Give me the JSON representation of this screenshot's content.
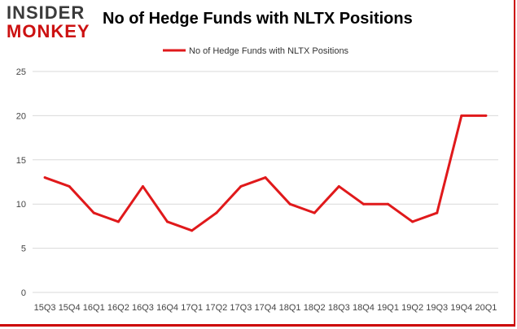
{
  "brand": {
    "line1": "INSIDER",
    "line2": "MONKEY"
  },
  "colors": {
    "series": "#e0191b",
    "grid": "#d9d9d9",
    "brand_red": "#cc1111",
    "brand_dark": "#3a3a3a"
  },
  "chart_data": {
    "type": "line",
    "title": "No of Hedge Funds with NLTX Positions",
    "xlabel": "",
    "ylabel": "",
    "categories": [
      "15Q3",
      "15Q4",
      "16Q1",
      "16Q2",
      "16Q3",
      "16Q4",
      "17Q1",
      "17Q2",
      "17Q3",
      "17Q4",
      "18Q1",
      "18Q2",
      "18Q3",
      "18Q4",
      "19Q1",
      "19Q2",
      "19Q3",
      "19Q4",
      "20Q1"
    ],
    "series": [
      {
        "name": "No of Hedge Funds with NLTX Positions",
        "values": [
          13,
          12,
          9,
          8,
          12,
          8,
          7,
          9,
          12,
          13,
          10,
          9,
          12,
          10,
          10,
          8,
          9,
          20,
          20
        ]
      }
    ],
    "ylim": [
      0,
      25
    ],
    "yticks": [
      0,
      5,
      10,
      15,
      20,
      25
    ],
    "grid": true,
    "legend_position": "top-center"
  }
}
